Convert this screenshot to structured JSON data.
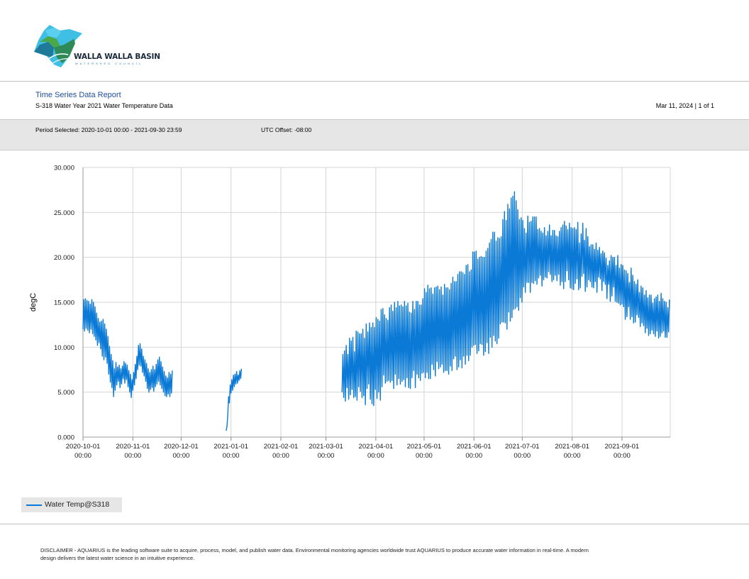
{
  "header": {
    "logo_text": "WALLA WALLA BASIN",
    "logo_subtext": "WATERSHED COUNCIL",
    "report_title": "Time Series Data Report",
    "report_subtitle": "S-318 Water Year 2021 Water Temperature Data",
    "report_date": "Mar 11, 2024 | 1 of 1"
  },
  "info_band": {
    "period": "Period Selected: 2020-10-01 00:00 - 2021-09-30 23:59",
    "utc_offset": "UTC Offset: -08:00"
  },
  "colors": {
    "series": "#0a7ad6",
    "grid": "#d4d4d4",
    "band": "#e6e6e6",
    "title": "#1f4e9c"
  },
  "chart_data": {
    "type": "line",
    "title": "",
    "ylabel": "degC",
    "xlabel": "",
    "ylim": [
      0,
      30
    ],
    "yticks": [
      "0.000",
      "5.000",
      "10.000",
      "15.000",
      "20.000",
      "25.000",
      "30.000"
    ],
    "xlim": [
      "2020-10-01",
      "2021-09-30"
    ],
    "xtick_dates": [
      "2020-10-01",
      "2020-11-01",
      "2020-12-01",
      "2021-01-01",
      "2021-02-01",
      "2021-03-01",
      "2021-04-01",
      "2021-05-01",
      "2021-06-01",
      "2021-07-01",
      "2021-08-01",
      "2021-09-01"
    ],
    "xtick_labels": [
      "2020-10-01",
      "2020-11-01",
      "2020-12-01",
      "2021-01-01",
      "2021-02-01",
      "2021-03-01",
      "2021-04-01",
      "2021-05-01",
      "2021-06-01",
      "2021-07-01",
      "2021-08-01",
      "2021-09-01"
    ],
    "xtick_sublabel": "00:00",
    "grid": true,
    "legend_position": "bottom-left",
    "series": [
      {
        "name": "Water Temp@S318",
        "segments": [
          {
            "start": "2020-10-01",
            "end": "2020-11-25",
            "min": [
              12.0,
              11.8,
              12.1,
              11.9,
              11.6,
              12.0,
              11.5,
              11.2,
              10.8,
              10.2,
              10.5,
              9.8,
              9.0,
              8.6,
              8.9,
              8.2,
              7.0,
              6.1,
              5.5,
              4.5,
              5.2,
              5.8,
              6.2,
              5.5,
              5.9,
              6.5,
              6.0,
              6.4,
              5.6,
              5.0,
              4.4,
              5.2,
              5.8,
              6.5,
              7.5,
              8.0,
              7.9,
              7.2,
              6.8,
              6.2,
              5.4,
              5.0,
              5.3,
              5.5,
              5.1,
              5.6,
              5.9,
              6.2,
              5.8,
              5.4,
              5.0,
              4.6,
              4.5,
              4.8,
              4.5,
              4.9
            ],
            "max": [
              15.3,
              15.4,
              15.2,
              15.1,
              14.8,
              15.3,
              15.0,
              14.5,
              13.8,
              13.2,
              12.8,
              12.9,
              13.1,
              12.6,
              12.0,
              11.2,
              10.1,
              9.2,
              8.5,
              7.6,
              8.3,
              7.8,
              8.0,
              7.6,
              7.9,
              8.4,
              8.2,
              8.0,
              7.4,
              7.0,
              6.4,
              7.2,
              8.1,
              9.0,
              10.2,
              10.4,
              9.8,
              9.0,
              8.6,
              8.2,
              7.6,
              7.2,
              7.5,
              7.9,
              7.5,
              8.1,
              8.6,
              8.9,
              8.4,
              7.8,
              7.3,
              6.8,
              6.6,
              7.2,
              7.0,
              7.4
            ]
          },
          {
            "start": "2020-12-29",
            "end": "2021-01-07",
            "min": [
              0.7,
              2.5,
              3.8,
              4.9,
              5.2,
              5.6,
              5.9,
              6.0,
              6.3,
              6.5
            ],
            "max": [
              1.2,
              4.5,
              5.8,
              6.4,
              6.9,
              7.0,
              7.3,
              6.9,
              7.4,
              7.6
            ]
          },
          {
            "start": "2021-03-11",
            "end": "2021-09-30",
            "min": [
              5.0,
              4.4,
              4.0,
              5.5,
              4.2,
              4.7,
              5.3,
              4.4,
              4.5,
              4.1,
              5.6,
              5.1,
              4.4,
              4.6,
              3.6,
              5.4,
              5.9,
              4.2,
              3.7,
              3.5,
              5.3,
              4.3,
              5.0,
              4.1,
              5.6,
              6.9,
              6.0,
              6.2,
              6.3,
              6.1,
              6.3,
              5.4,
              7.0,
              5.8,
              6.5,
              5.9,
              6.2,
              6.4,
              5.6,
              6.6,
              5.5,
              5.4,
              6.6,
              7.4,
              5.5,
              7.0,
              6.6,
              6.3,
              7.1,
              7.2,
              6.6,
              7.2,
              6.5,
              6.5,
              8.1,
              7.5,
              6.8,
              8.4,
              7.6,
              7.8,
              8.1,
              7.2,
              7.4,
              7.4,
              7.0,
              7.9,
              7.4,
              8.7,
              9.0,
              7.5,
              7.8,
              8.6,
              7.7,
              9.0,
              8.1,
              9.1,
              8.5,
              9.1,
              10.0,
              10.2,
              10.3,
              9.3,
              9.6,
              10.4,
              10.3,
              9.1,
              9.5,
              10.5,
              9.3,
              11.1,
              10.0,
              11.3,
              10.7,
              10.4,
              11.0,
              12.6,
              12.8,
              12.8,
              12.7,
              12.0,
              13.9,
              12.9,
              13.3,
              14.2,
              14.3,
              14.5,
              14.1,
              15.5,
              15.0,
              16.7,
              16.1,
              17.2,
              17.2,
              16.1,
              17.2,
              17.1,
              17.4,
              17.0,
              17.7,
              18.0,
              16.8,
              17.5,
              17.8,
              17.7,
              18.4,
              18.1,
              17.3,
              17.5,
              18.0,
              17.4,
              18.1,
              16.9,
              17.3,
              16.5,
              17.3,
              18.5,
              17.5,
              16.6,
              16.5,
              16.4,
              17.1,
              17.6,
              16.4,
              16.6,
              17.9,
              18.2,
              16.2,
              16.7,
              17.5,
              17.3,
              16.7,
              16.6,
              17.3,
              16.1,
              17.8,
              17.6,
              16.3,
              17.3,
              17.0,
              15.4,
              17.0,
              15.1,
              15.7,
              16.7,
              15.1,
              15.0,
              14.9,
              14.7,
              14.8,
              14.5,
              13.1,
              13.4,
              14.5,
              13.1,
              13.4,
              12.7,
              12.8,
              13.6,
              13.3,
              12.3,
              12.7,
              12.4,
              11.6,
              12.1,
              11.3,
              11.5,
              11.9,
              11.5,
              11.2,
              11.8,
              11.0,
              11.2,
              11.6,
              11.8,
              11.1,
              11.1,
              11.7
            ],
            "max": [
              9.2,
              9.6,
              10.2,
              9.2,
              11.0,
              10.7,
              11.1,
              9.5,
              11.8,
              11.7,
              11.5,
              11.5,
              12.0,
              11.0,
              12.6,
              11.7,
              12.7,
              12.2,
              12.7,
              12.2,
              13.3,
              13.1,
              12.9,
              14.2,
              14.3,
              13.6,
              13.2,
              13.0,
              14.4,
              14.7,
              14.0,
              15.0,
              14.4,
              15.1,
              14.6,
              14.7,
              14.5,
              15.1,
              14.6,
              14.9,
              13.9,
              13.8,
              15.1,
              14.2,
              15.1,
              15.1,
              14.7,
              14.7,
              15.4,
              16.5,
              16.1,
              16.9,
              16.5,
              16.6,
              15.9,
              16.6,
              16.7,
              16.8,
              16.4,
              16.7,
              15.8,
              17.0,
              16.6,
              16.6,
              16.4,
              17.1,
              17.8,
              17.3,
              17.3,
              18.1,
              18.4,
              18.4,
              18.3,
              18.1,
              19.1,
              19.2,
              18.4,
              18.6,
              20.6,
              20.6,
              20.7,
              19.8,
              20.0,
              20.1,
              20.0,
              20.0,
              20.7,
              21.0,
              21.6,
              22.0,
              22.8,
              22.8,
              21.8,
              22.2,
              22.1,
              22.3,
              24.2,
              25.1,
              24.1,
              25.9,
              25.4,
              26.6,
              26.8,
              27.3,
              26.3,
              25.3,
              24.2,
              24.4,
              24.1,
              23.2,
              22.7,
              24.6,
              23.9,
              24.0,
              24.5,
              24.5,
              24.5,
              23.1,
              23.2,
              22.9,
              22.7,
              23.3,
              22.4,
              22.9,
              23.6,
              22.4,
              23.0,
              23.0,
              22.4,
              22.3,
              22.9,
              23.3,
              23.6,
              24.0,
              23.5,
              23.1,
              23.8,
              23.3,
              23.2,
              23.3,
              23.1,
              23.9,
              21.6,
              22.6,
              23.8,
              21.9,
              23.2,
              22.3,
              21.2,
              21.4,
              21.4,
              20.9,
              21.6,
              20.8,
              21.1,
              20.4,
              20.7,
              20.5,
              19.9,
              19.1,
              19.6,
              20.2,
              20.0,
              20.0,
              19.1,
              20.2,
              18.8,
              19.2,
              19.1,
              18.6,
              18.5,
              18.2,
              17.2,
              18.8,
              18.0,
              17.3,
              17.0,
              17.5,
              16.1,
              16.8,
              16.6,
              15.8,
              16.3,
              15.5,
              15.8,
              15.8,
              14.9,
              15.4,
              15.6,
              15.8,
              15.1,
              16.0,
              15.4,
              15.1,
              15.0,
              14.4,
              15.3
            ]
          }
        ]
      }
    ]
  },
  "legend": {
    "label": "Water Temp@S318"
  },
  "footer": {
    "disclaimer": "DISCLAIMER - AQUARIUS is the leading software suite to acquire, process, model, and publish water data. Environmental monitoring agencies worldwide trust AQUARIUS to produce accurate water information in real-time. A modern design delivers the latest water science in an intuitive experience."
  }
}
